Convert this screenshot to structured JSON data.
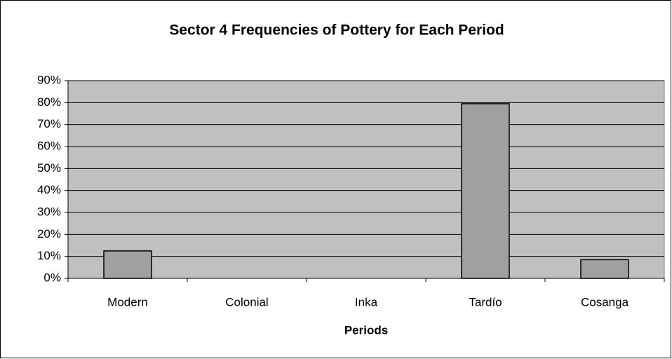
{
  "chart_data": {
    "type": "bar",
    "title": "Sector 4 Frequencies of Pottery for Each Period",
    "x_label": "Periods",
    "categories": [
      "Modern",
      "Colonial",
      "Inka",
      "Tardío",
      "Cosanga"
    ],
    "values": [
      12.5,
      0,
      0,
      79.5,
      8.5
    ],
    "color": "#a0a0a0",
    "ylim": [
      0,
      90
    ],
    "yticks": [
      {
        "value": 0,
        "label": "0%"
      },
      {
        "value": 10,
        "label": "10%"
      },
      {
        "value": 20,
        "label": "20%"
      },
      {
        "value": 30,
        "label": "30%"
      },
      {
        "value": 40,
        "label": "40%"
      },
      {
        "value": 50,
        "label": "50%"
      },
      {
        "value": 60,
        "label": "60%"
      },
      {
        "value": 70,
        "label": "70%"
      },
      {
        "value": 80,
        "label": "80%"
      },
      {
        "value": 90,
        "label": "90%"
      }
    ],
    "grid": true
  }
}
